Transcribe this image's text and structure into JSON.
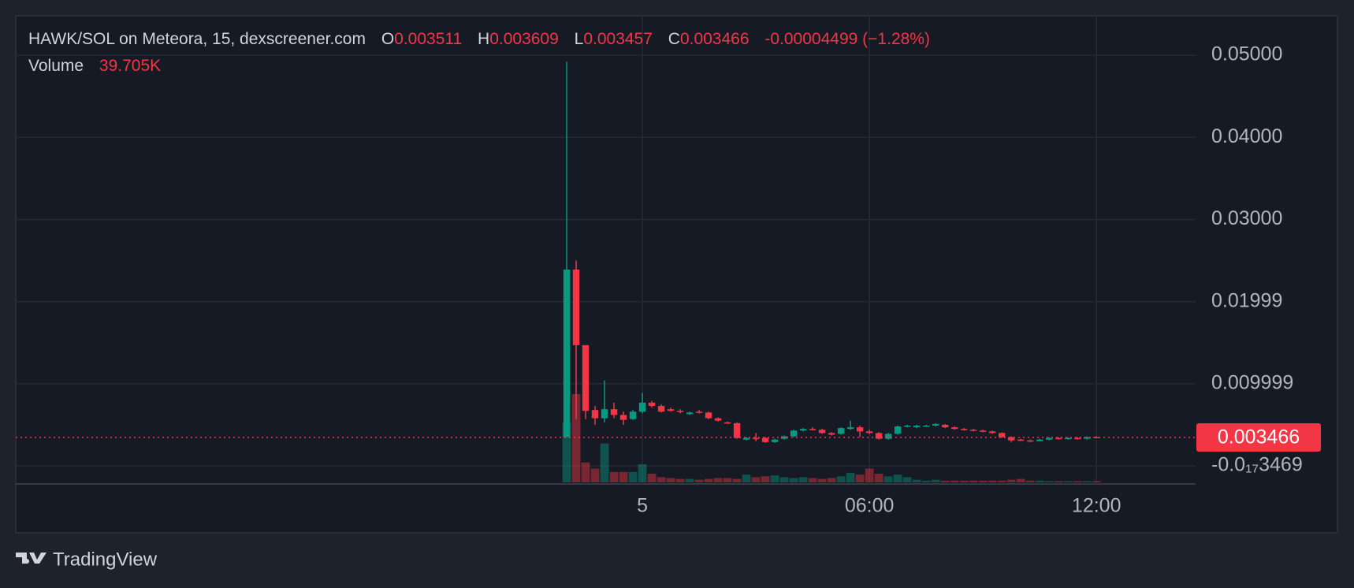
{
  "chart_data": {
    "type": "candlestick",
    "title": "HAWK/SOL on Meteora, 15, dexscreener.com",
    "ohlc_letters": [
      "O",
      "H",
      "L",
      "C"
    ],
    "change": "-0.00004499",
    "change_pct": "(−1.28%)",
    "volume_name": "Volume",
    "volume_last_label": "39.705K",
    "up_color": "#089981",
    "down_color": "#f23645",
    "grid": true,
    "x": [
      -2,
      -1.75,
      -1.5,
      -1.25,
      -1,
      -0.75,
      -0.5,
      -0.25,
      0,
      0.25,
      0.5,
      0.75,
      1,
      1.25,
      1.5,
      1.75,
      2,
      2.25,
      2.5,
      2.75,
      3,
      3.25,
      3.5,
      3.75,
      4,
      4.25,
      4.5,
      4.75,
      5,
      5.25,
      5.5,
      5.75,
      6,
      6.25,
      6.5,
      6.75,
      7,
      7.25,
      7.5,
      7.75,
      8,
      8.25,
      8.5,
      8.75,
      9,
      9.25,
      9.5,
      9.75,
      10,
      10.25,
      10.5,
      10.75,
      11,
      11.25,
      11.5,
      11.75,
      12
    ],
    "open": [
      0.0035,
      0.0239,
      0.0147,
      0.0068,
      0.0058,
      0.0069,
      0.0062,
      0.0057,
      0.0066,
      0.0077,
      0.0073,
      0.0069,
      0.0067,
      0.0063,
      0.0066,
      0.0065,
      0.0058,
      0.0053,
      0.0052,
      0.0032,
      0.0034,
      0.0034,
      0.0029,
      0.0033,
      0.0036,
      0.0043,
      0.0045,
      0.0044,
      0.004,
      0.0039,
      0.0045,
      0.0047,
      0.0042,
      0.004,
      0.0033,
      0.0039,
      0.0048,
      0.0047,
      0.0049,
      0.0049,
      0.005,
      0.0047,
      0.0045,
      0.0044,
      0.0043,
      0.0042,
      0.004,
      0.0035,
      0.0032,
      0.0031,
      0.003,
      0.0032,
      0.0034,
      0.0033,
      0.0034,
      0.0033,
      0.003511
    ],
    "high": [
      0.0492,
      0.025,
      0.0147,
      0.0073,
      0.0104,
      0.0077,
      0.0066,
      0.0068,
      0.0089,
      0.0079,
      0.0075,
      0.0071,
      0.0069,
      0.0066,
      0.0068,
      0.0066,
      0.0059,
      0.0054,
      0.0053,
      0.0035,
      0.004,
      0.0035,
      0.0033,
      0.0037,
      0.0044,
      0.0046,
      0.0047,
      0.0045,
      0.0041,
      0.0047,
      0.0055,
      0.0049,
      0.0044,
      0.0041,
      0.004,
      0.0049,
      0.005,
      0.005,
      0.005,
      0.0052,
      0.0051,
      0.0048,
      0.0046,
      0.0045,
      0.0044,
      0.0043,
      0.0041,
      0.0036,
      0.0033,
      0.0032,
      0.0033,
      0.0035,
      0.0035,
      0.0035,
      0.0035,
      0.0036,
      0.003609
    ],
    "low": [
      0.0035,
      0.0057,
      0.0057,
      0.005,
      0.0053,
      0.0058,
      0.005,
      0.0056,
      0.0064,
      0.0071,
      0.0065,
      0.0066,
      0.0064,
      0.0062,
      0.0064,
      0.0057,
      0.0054,
      0.0051,
      0.0033,
      0.0031,
      0.003,
      0.0028,
      0.0028,
      0.0032,
      0.0035,
      0.0042,
      0.0043,
      0.0039,
      0.0037,
      0.0038,
      0.0044,
      0.0035,
      0.0039,
      0.0032,
      0.0032,
      0.0038,
      0.0047,
      0.0046,
      0.0048,
      0.0048,
      0.0046,
      0.0044,
      0.0043,
      0.0042,
      0.0041,
      0.0039,
      0.0034,
      0.0029,
      0.003,
      0.0029,
      0.003,
      0.0031,
      0.0032,
      0.0032,
      0.0032,
      0.0032,
      0.003457
    ],
    "close": [
      0.0239,
      0.0147,
      0.0067,
      0.0058,
      0.0069,
      0.0062,
      0.0056,
      0.0066,
      0.0077,
      0.0073,
      0.0066,
      0.0067,
      0.0066,
      0.0065,
      0.0065,
      0.0058,
      0.0055,
      0.0052,
      0.0034,
      0.0034,
      0.0033,
      0.0029,
      0.0032,
      0.0036,
      0.0043,
      0.0045,
      0.0044,
      0.004,
      0.0038,
      0.0046,
      0.0047,
      0.0042,
      0.004,
      0.0033,
      0.0039,
      0.0048,
      0.0049,
      0.0049,
      0.0049,
      0.0051,
      0.0047,
      0.0045,
      0.0044,
      0.0043,
      0.0042,
      0.004,
      0.0035,
      0.0031,
      0.0031,
      0.003,
      0.0032,
      0.0034,
      0.0033,
      0.0034,
      0.0033,
      0.0035,
      0.003466
    ],
    "volume": [
      1794000,
      2652000,
      598000,
      416000,
      1170000,
      312000,
      312000,
      312000,
      546000,
      260000,
      156000,
      130000,
      104000,
      104000,
      78000,
      104000,
      130000,
      130000,
      104000,
      234000,
      156000,
      182000,
      208000,
      156000,
      130000,
      156000,
      130000,
      104000,
      130000,
      182000,
      286000,
      234000,
      416000,
      260000,
      182000,
      234000,
      156000,
      78000,
      52000,
      78000,
      52000,
      52000,
      52000,
      52000,
      52000,
      52000,
      52000,
      78000,
      104000,
      52000,
      52000,
      39000,
      39000,
      39000,
      39000,
      39000,
      39705
    ],
    "xlim": [
      -16.56,
      14.62
    ],
    "xticks": [
      {
        "value": 0,
        "label": "5"
      },
      {
        "value": 6,
        "label": "06:00"
      },
      {
        "value": 12,
        "label": "12:00"
      }
    ],
    "ylim": [
      -0.0022,
      0.0548
    ],
    "yticks": [
      {
        "value": 0.05,
        "label": "0.05000"
      },
      {
        "value": 0.04,
        "label": "0.04000"
      },
      {
        "value": 0.03,
        "label": "0.03000"
      },
      {
        "value": 0.01999,
        "label": "0.01999"
      },
      {
        "value": 0.009999,
        "label": "0.009999"
      },
      {
        "value": -3.469e-18,
        "label": "-0.0₁₇3469"
      }
    ]
  },
  "footer": {
    "brand": "TradingView"
  }
}
